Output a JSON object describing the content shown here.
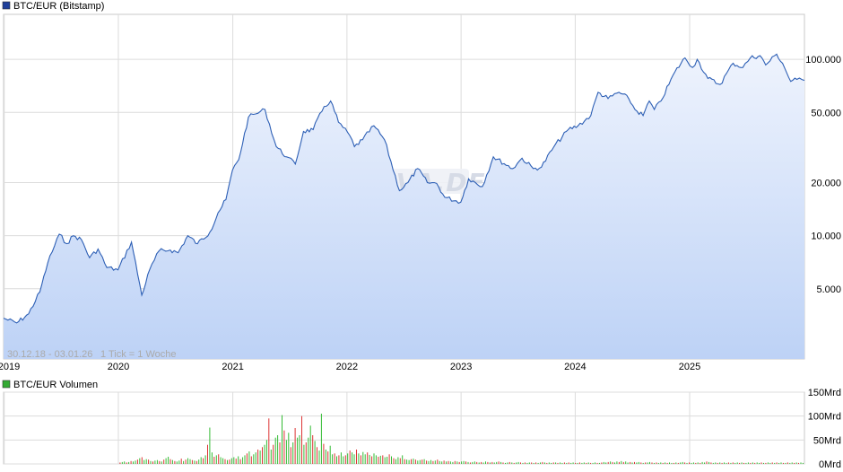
{
  "price_legend": {
    "label": "BTC/EUR (Bitstamp)",
    "color": "#1f3f9a"
  },
  "volume_legend": {
    "label": "BTC/EUR Volumen",
    "color": "#33aa33"
  },
  "info": {
    "range": "30.12.18 - 03.01.26",
    "tick": "1 Tick = 1 Woche"
  },
  "watermark": "ARIVA.DE",
  "chart_data": [
    {
      "type": "area",
      "series_name": "BTC/EUR (Bitstamp)",
      "scale": "log",
      "x_ticks": [
        "2019",
        "2020",
        "2021",
        "2022",
        "2023",
        "2024",
        "2025"
      ],
      "y_ticks": [
        "100.000",
        "50.000",
        "20.000",
        "10.000",
        "5.000"
      ],
      "y_tick_values": [
        100000,
        50000,
        20000,
        10000,
        5000
      ],
      "ylim": [
        2000,
        180000
      ],
      "xlim": [
        "2018-12-30",
        "2026-01-03"
      ],
      "line_color": "#2d5fb5",
      "fill_top": "#eef3fd",
      "fill_bottom": "#bdd2f6",
      "points": [
        [
          "2018-12-30",
          3400
        ],
        [
          "2019-02-10",
          3200
        ],
        [
          "2019-03-20",
          3600
        ],
        [
          "2019-04-25",
          4800
        ],
        [
          "2019-05-20",
          7000
        ],
        [
          "2019-06-26",
          10200
        ],
        [
          "2019-07-20",
          9000
        ],
        [
          "2019-08-10",
          10000
        ],
        [
          "2019-09-05",
          9500
        ],
        [
          "2019-10-01",
          7500
        ],
        [
          "2019-10-28",
          8400
        ],
        [
          "2019-11-25",
          6600
        ],
        [
          "2019-12-31",
          6400
        ],
        [
          "2020-02-12",
          9200
        ],
        [
          "2020-03-16",
          4600
        ],
        [
          "2020-04-10",
          6400
        ],
        [
          "2020-05-10",
          8200
        ],
        [
          "2020-06-15",
          8300
        ],
        [
          "2020-07-10",
          8000
        ],
        [
          "2020-08-10",
          10000
        ],
        [
          "2020-09-10",
          9000
        ],
        [
          "2020-10-20",
          10500
        ],
        [
          "2020-11-15",
          13500
        ],
        [
          "2020-12-10",
          16000
        ],
        [
          "2020-12-31",
          23500
        ],
        [
          "2021-01-20",
          27000
        ],
        [
          "2021-02-20",
          47000
        ],
        [
          "2021-03-15",
          49000
        ],
        [
          "2021-04-14",
          52000
        ],
        [
          "2021-05-20",
          32000
        ],
        [
          "2021-06-22",
          28000
        ],
        [
          "2021-07-20",
          25500
        ],
        [
          "2021-08-15",
          39000
        ],
        [
          "2021-09-15",
          40000
        ],
        [
          "2021-10-20",
          54000
        ],
        [
          "2021-11-10",
          58000
        ],
        [
          "2021-12-05",
          44000
        ],
        [
          "2022-01-10",
          37000
        ],
        [
          "2022-01-25",
          32000
        ],
        [
          "2022-02-20",
          35000
        ],
        [
          "2022-03-28",
          42000
        ],
        [
          "2022-05-01",
          35000
        ],
        [
          "2022-06-18",
          18000
        ],
        [
          "2022-07-15",
          20000
        ],
        [
          "2022-08-15",
          24000
        ],
        [
          "2022-09-15",
          20000
        ],
        [
          "2022-10-15",
          19800
        ],
        [
          "2022-11-10",
          16500
        ],
        [
          "2022-12-31",
          15500
        ],
        [
          "2023-01-25",
          21000
        ],
        [
          "2023-03-10",
          19000
        ],
        [
          "2023-04-14",
          28000
        ],
        [
          "2023-06-15",
          24000
        ],
        [
          "2023-07-15",
          27500
        ],
        [
          "2023-08-20",
          24000
        ],
        [
          "2023-09-15",
          24500
        ],
        [
          "2023-10-25",
          32000
        ],
        [
          "2023-12-10",
          40000
        ],
        [
          "2024-01-10",
          42000
        ],
        [
          "2024-02-20",
          48000
        ],
        [
          "2024-03-14",
          65000
        ],
        [
          "2024-04-15",
          60000
        ],
        [
          "2024-05-20",
          65000
        ],
        [
          "2024-06-20",
          60000
        ],
        [
          "2024-07-10",
          52000
        ],
        [
          "2024-08-05",
          48000
        ],
        [
          "2024-08-25",
          58000
        ],
        [
          "2024-09-10",
          52000
        ],
        [
          "2024-10-01",
          58000
        ],
        [
          "2024-11-15",
          85000
        ],
        [
          "2024-12-17",
          102000
        ],
        [
          "2025-01-10",
          90000
        ],
        [
          "2025-01-25",
          100000
        ],
        [
          "2025-02-28",
          78000
        ],
        [
          "2025-04-08",
          72000
        ],
        [
          "2025-05-20",
          95000
        ],
        [
          "2025-06-20",
          90000
        ],
        [
          "2025-07-14",
          102000
        ],
        [
          "2025-08-14",
          105000
        ],
        [
          "2025-09-01",
          93000
        ],
        [
          "2025-10-06",
          107000
        ],
        [
          "2025-10-25",
          95000
        ],
        [
          "2025-11-20",
          75000
        ],
        [
          "2025-12-10",
          77000
        ],
        [
          "2026-01-03",
          76000
        ]
      ]
    },
    {
      "type": "bar",
      "series_name": "BTC/EUR Volumen",
      "y_ticks": [
        "150Mrd",
        "100Mrd",
        "50Mrd",
        "0Mrd"
      ],
      "y_tick_values": [
        150,
        100,
        50,
        0
      ],
      "ylim": [
        0,
        150
      ],
      "unit": "Mrd",
      "up_color": "#33bb33",
      "down_color": "#dd3333",
      "start_week": "2020-01-05",
      "weekly_values": [
        3,
        4,
        5,
        3,
        4,
        6,
        5,
        7,
        9,
        12,
        14,
        8,
        10,
        9,
        6,
        5,
        7,
        8,
        6,
        5,
        9,
        12,
        15,
        10,
        8,
        6,
        5,
        7,
        11,
        6,
        9,
        12,
        10,
        8,
        7,
        6,
        9,
        14,
        12,
        18,
        40,
        76,
        24,
        15,
        18,
        20,
        14,
        12,
        10,
        8,
        9,
        12,
        14,
        11,
        16,
        10,
        14,
        18,
        22,
        26,
        16,
        20,
        24,
        30,
        28,
        35,
        40,
        50,
        95,
        30,
        40,
        55,
        60,
        45,
        102,
        70,
        50,
        65,
        35,
        45,
        75,
        55,
        60,
        100,
        40,
        45,
        55,
        80,
        60,
        48,
        35,
        28,
        105,
        42,
        30,
        26,
        38,
        20,
        22,
        16,
        18,
        24,
        16,
        18,
        22,
        28,
        24,
        20,
        30,
        22,
        18,
        25,
        20,
        24,
        19,
        16,
        22,
        18,
        15,
        17,
        18,
        14,
        15,
        20,
        16,
        12,
        10,
        14,
        12,
        18,
        10,
        9,
        8,
        10,
        11,
        9,
        7,
        8,
        9,
        10,
        7,
        6,
        8,
        6,
        7,
        9,
        6,
        5,
        7,
        5,
        6,
        5,
        4,
        6,
        5,
        4,
        5,
        6,
        5,
        4,
        3,
        4,
        5,
        4,
        3,
        4,
        3,
        5,
        4,
        3,
        4,
        3,
        4,
        5,
        4,
        3,
        2,
        3,
        4,
        3,
        2,
        3,
        4,
        3,
        2,
        3,
        2,
        3,
        3,
        2,
        3,
        2,
        3,
        4,
        3,
        2,
        3,
        2,
        3,
        3,
        2,
        3,
        2,
        3,
        2,
        3,
        2,
        3,
        2,
        2,
        3,
        2,
        3,
        2,
        3,
        2,
        2,
        3,
        2,
        2,
        3,
        4,
        3,
        4,
        5,
        4,
        3,
        5,
        4,
        6,
        4,
        5,
        3,
        4,
        3,
        4,
        3,
        4,
        3,
        2,
        3,
        3,
        4,
        3,
        2,
        3,
        2,
        3,
        2,
        3,
        2,
        3,
        2,
        2,
        3,
        2,
        3,
        4,
        3,
        2,
        3,
        2,
        3,
        2,
        3,
        2,
        4,
        3,
        5,
        4,
        3,
        2,
        3,
        2,
        3,
        2,
        3,
        2,
        3,
        2,
        3,
        2,
        3,
        2,
        3,
        2,
        2,
        3,
        2,
        3,
        2,
        3,
        2,
        3,
        2,
        2,
        3,
        2,
        3,
        2,
        3,
        2,
        3,
        2,
        2,
        3,
        2,
        3,
        2,
        3,
        2,
        3,
        2,
        3,
        2,
        3,
        2,
        3,
        2,
        3,
        2,
        3,
        2,
        3
      ]
    }
  ]
}
